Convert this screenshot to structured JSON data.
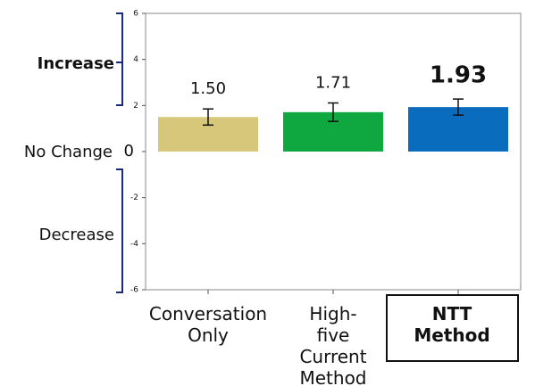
{
  "chart_data": {
    "type": "bar",
    "categories": [
      "Conversation Only",
      "High-five Current Method",
      "NTT Method"
    ],
    "values": [
      1.5,
      1.71,
      1.93
    ],
    "value_labels": [
      "1.50",
      "1.71",
      "1.93"
    ],
    "errors": [
      0.35,
      0.4,
      0.35
    ],
    "colors": [
      "#d6c77b",
      "#0fa840",
      "#0a6cbc"
    ],
    "ylim": [
      -6,
      6
    ],
    "yticks": [
      -6,
      -4,
      -2,
      0,
      2,
      4,
      6
    ],
    "annotations": [
      "Increase",
      "No Change",
      "Decrease"
    ]
  }
}
